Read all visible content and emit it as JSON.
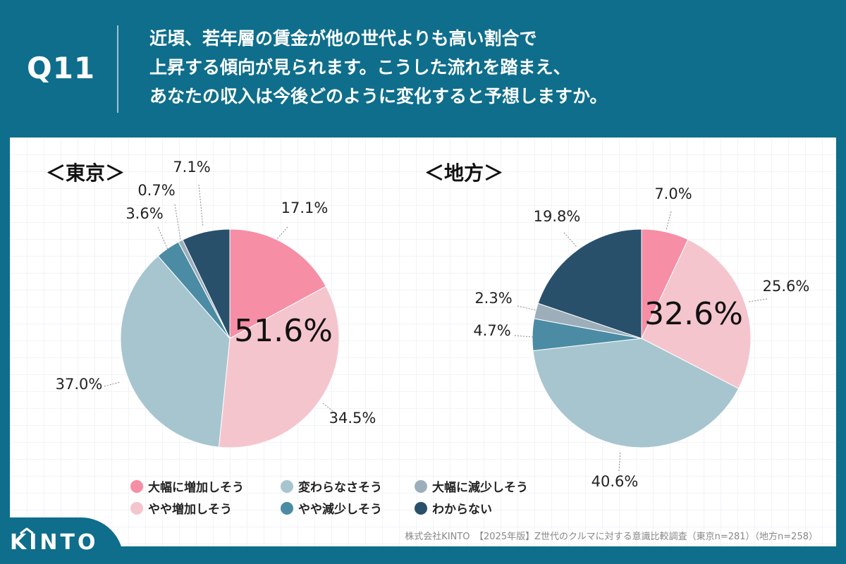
{
  "header": {
    "question_number": "Q11",
    "question_lines": [
      "近頃、若年層の賃金が他の世代よりも高い割合で",
      "上昇する傾向が見られます。こうした流れを踏まえ、",
      "あなたの収入は今後どのように変化すると予想しますか。"
    ]
  },
  "colors": {
    "header_bg": "#0e6e8c",
    "greatly_increase": "#f68ea6",
    "slightly_increase": "#f5c5ce",
    "no_change": "#a6c5cf",
    "slightly_decrease": "#4b8ca4",
    "greatly_decrease": "#9daebb",
    "dont_know": "#29506a"
  },
  "chart_data": [
    {
      "type": "pie",
      "title": "＜東京＞",
      "highlight_label": "51.6%",
      "slices": [
        {
          "name": "大幅に増加しそう",
          "value": 17.1,
          "label": "17.1%"
        },
        {
          "name": "やや増加しそう",
          "value": 34.5,
          "label": "34.5%"
        },
        {
          "name": "変わらなさそう",
          "value": 37.0,
          "label": "37.0%"
        },
        {
          "name": "やや減少しそう",
          "value": 3.6,
          "label": "3.6%"
        },
        {
          "name": "大幅に減少しそう",
          "value": 0.7,
          "label": "0.7%"
        },
        {
          "name": "わからない",
          "value": 7.1,
          "label": "7.1%"
        }
      ]
    },
    {
      "type": "pie",
      "title": "＜地方＞",
      "highlight_label": "32.6%",
      "slices": [
        {
          "name": "大幅に増加しそう",
          "value": 7.0,
          "label": "7.0%"
        },
        {
          "name": "やや増加しそう",
          "value": 25.6,
          "label": "25.6%"
        },
        {
          "name": "変わらなさそう",
          "value": 40.6,
          "label": "40.6%"
        },
        {
          "name": "やや減少しそう",
          "value": 4.7,
          "label": "4.7%"
        },
        {
          "name": "大幅に減少しそう",
          "value": 2.3,
          "label": "2.3%"
        },
        {
          "name": "わからない",
          "value": 19.8,
          "label": "19.8%"
        }
      ]
    }
  ],
  "legend": [
    {
      "label": "大幅に増加しそう",
      "color": "#f68ea6"
    },
    {
      "label": "変わらなさそう",
      "color": "#a6c5cf"
    },
    {
      "label": "大幅に減少しそう",
      "color": "#9daebb"
    },
    {
      "label": "やや増加しそう",
      "color": "#f5c5ce"
    },
    {
      "label": "やや減少しそう",
      "color": "#4b8ca4"
    },
    {
      "label": "わからない",
      "color": "#29506a"
    }
  ],
  "footer": {
    "logo": "KINTO",
    "source": "株式会社KINTO　【2025年版】Z世代のクルマに対する意識比較調査（東京n=281）（地方n=258）"
  }
}
